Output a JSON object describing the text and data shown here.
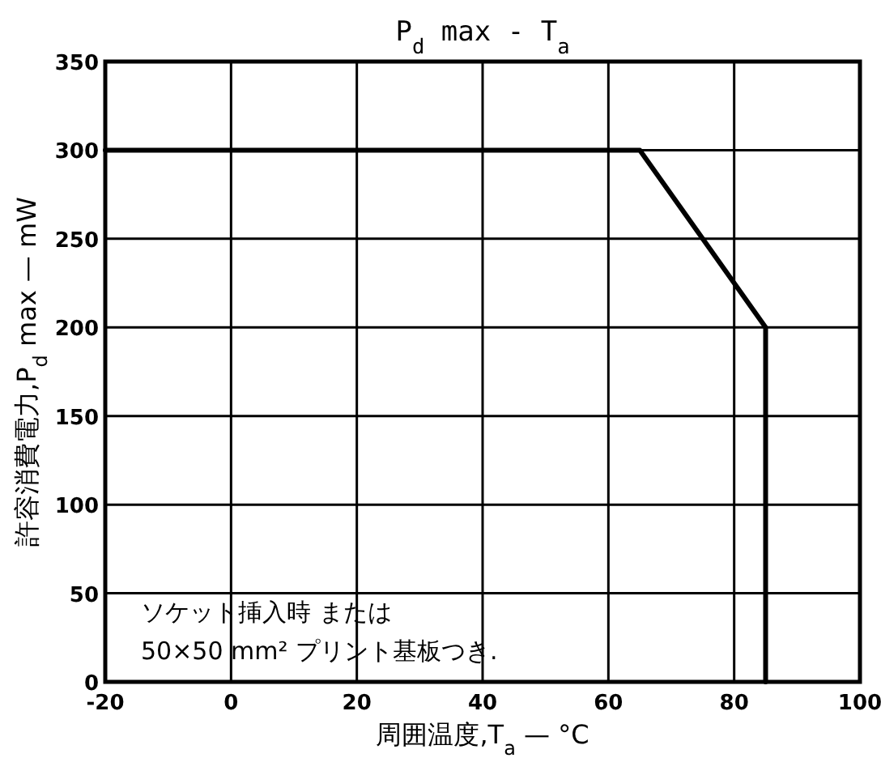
{
  "chart_data": {
    "type": "line",
    "title": "P$_{d}$ max - T$_{a}$",
    "xlabel": "周囲温度,T$_{a}$ — °C",
    "ylabel": "許容消費電力,P$_{d}$ max — mW",
    "x": [
      -20,
      65,
      85,
      85
    ],
    "series": [
      {
        "color": "#000000",
        "values": [
          300,
          300,
          200,
          0
        ]
      }
    ],
    "xlim": [
      -20,
      100
    ],
    "xticks": [
      -20,
      0,
      20,
      40,
      60,
      80,
      100
    ],
    "ylim": [
      0,
      350
    ],
    "yticks": [
      0,
      50,
      100,
      150,
      200,
      250,
      300,
      350
    ],
    "grid": true,
    "annotations": [
      "ソケット挿入時 または",
      "50×50 mm² プリント基板つき."
    ]
  }
}
